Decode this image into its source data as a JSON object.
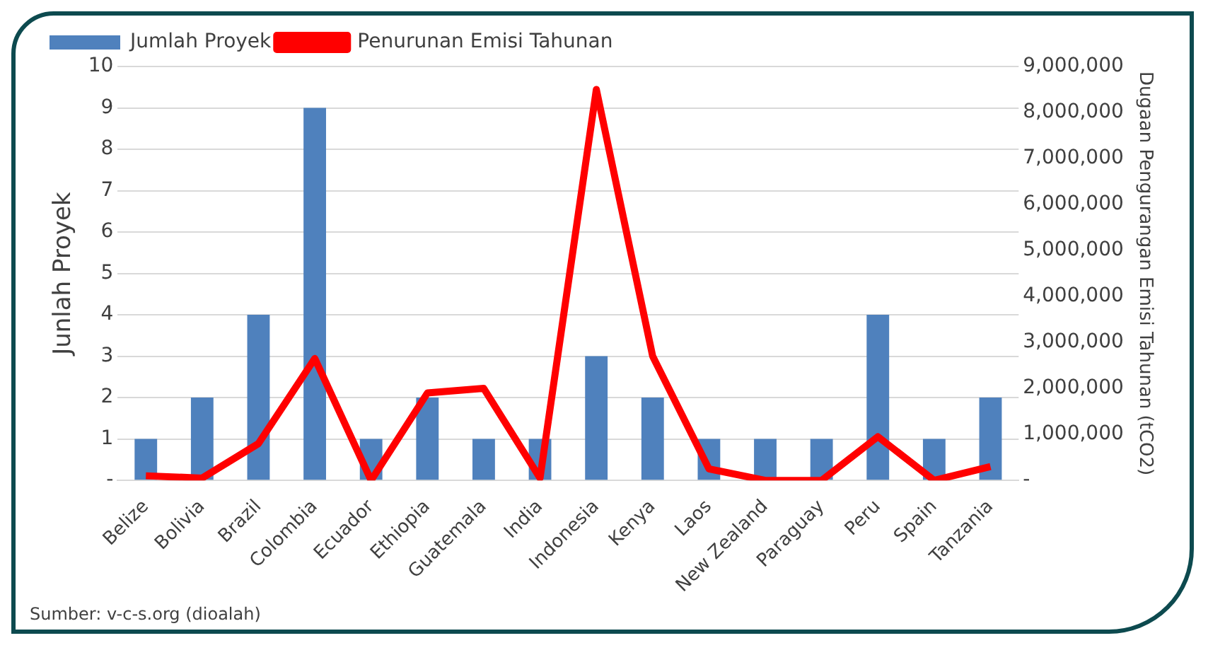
{
  "chart_data": {
    "type": "bar",
    "categories": [
      "Belize",
      "Bolivia",
      "Brazil",
      "Colombia",
      "Ecuador",
      "Ethiopia",
      "Guatemala",
      "India",
      "Indonesia",
      "Kenya",
      "Laos",
      "New Zealand",
      "Paraguay",
      "Peru",
      "Spain",
      "Tanzania"
    ],
    "series": [
      {
        "name": "Jumlah Proyek",
        "color": "#4f81bd",
        "values": [
          1,
          2,
          4,
          9,
          1,
          2,
          1,
          1,
          3,
          2,
          1,
          1,
          1,
          4,
          1,
          2
        ]
      },
      {
        "name": "Penurunan Emisi Tahunan",
        "type": "line",
        "axis": "y2",
        "color": "#ff0000",
        "values": [
          100000,
          50000,
          800000,
          2650000,
          0,
          1900000,
          2000000,
          50000,
          8500000,
          2700000,
          250000,
          0,
          0,
          950000,
          0,
          300000
        ]
      }
    ],
    "ylabel": "Junlah Proyek",
    "y2label": "Dugaan Pengurangan Emisi Tahunan (tCO2)",
    "ylim": [
      0,
      10
    ],
    "yticks": [
      {
        "value": 0,
        "label": "-"
      },
      1,
      2,
      3,
      4,
      5,
      6,
      7,
      8,
      9,
      10
    ],
    "y2lim": [
      0,
      9000000
    ],
    "y2ticks": [
      {
        "value": 0,
        "label": "-"
      },
      {
        "value": 1000000,
        "label": "1,000,000"
      },
      {
        "value": 2000000,
        "label": "2,000,000"
      },
      {
        "value": 3000000,
        "label": "3,000,000"
      },
      {
        "value": 4000000,
        "label": "4,000,000"
      },
      {
        "value": 5000000,
        "label": "5,000,000"
      },
      {
        "value": 6000000,
        "label": "6,000,000"
      },
      {
        "value": 7000000,
        "label": "7,000,000"
      },
      {
        "value": 8000000,
        "label": "8,000,000"
      },
      {
        "value": 9000000,
        "label": "9,000,000"
      }
    ],
    "grid": "y",
    "legend": "top",
    "marker": "none",
    "line_style": "solid",
    "annotations": [
      "Sumber: v-c-s.org (dioalah)"
    ]
  }
}
